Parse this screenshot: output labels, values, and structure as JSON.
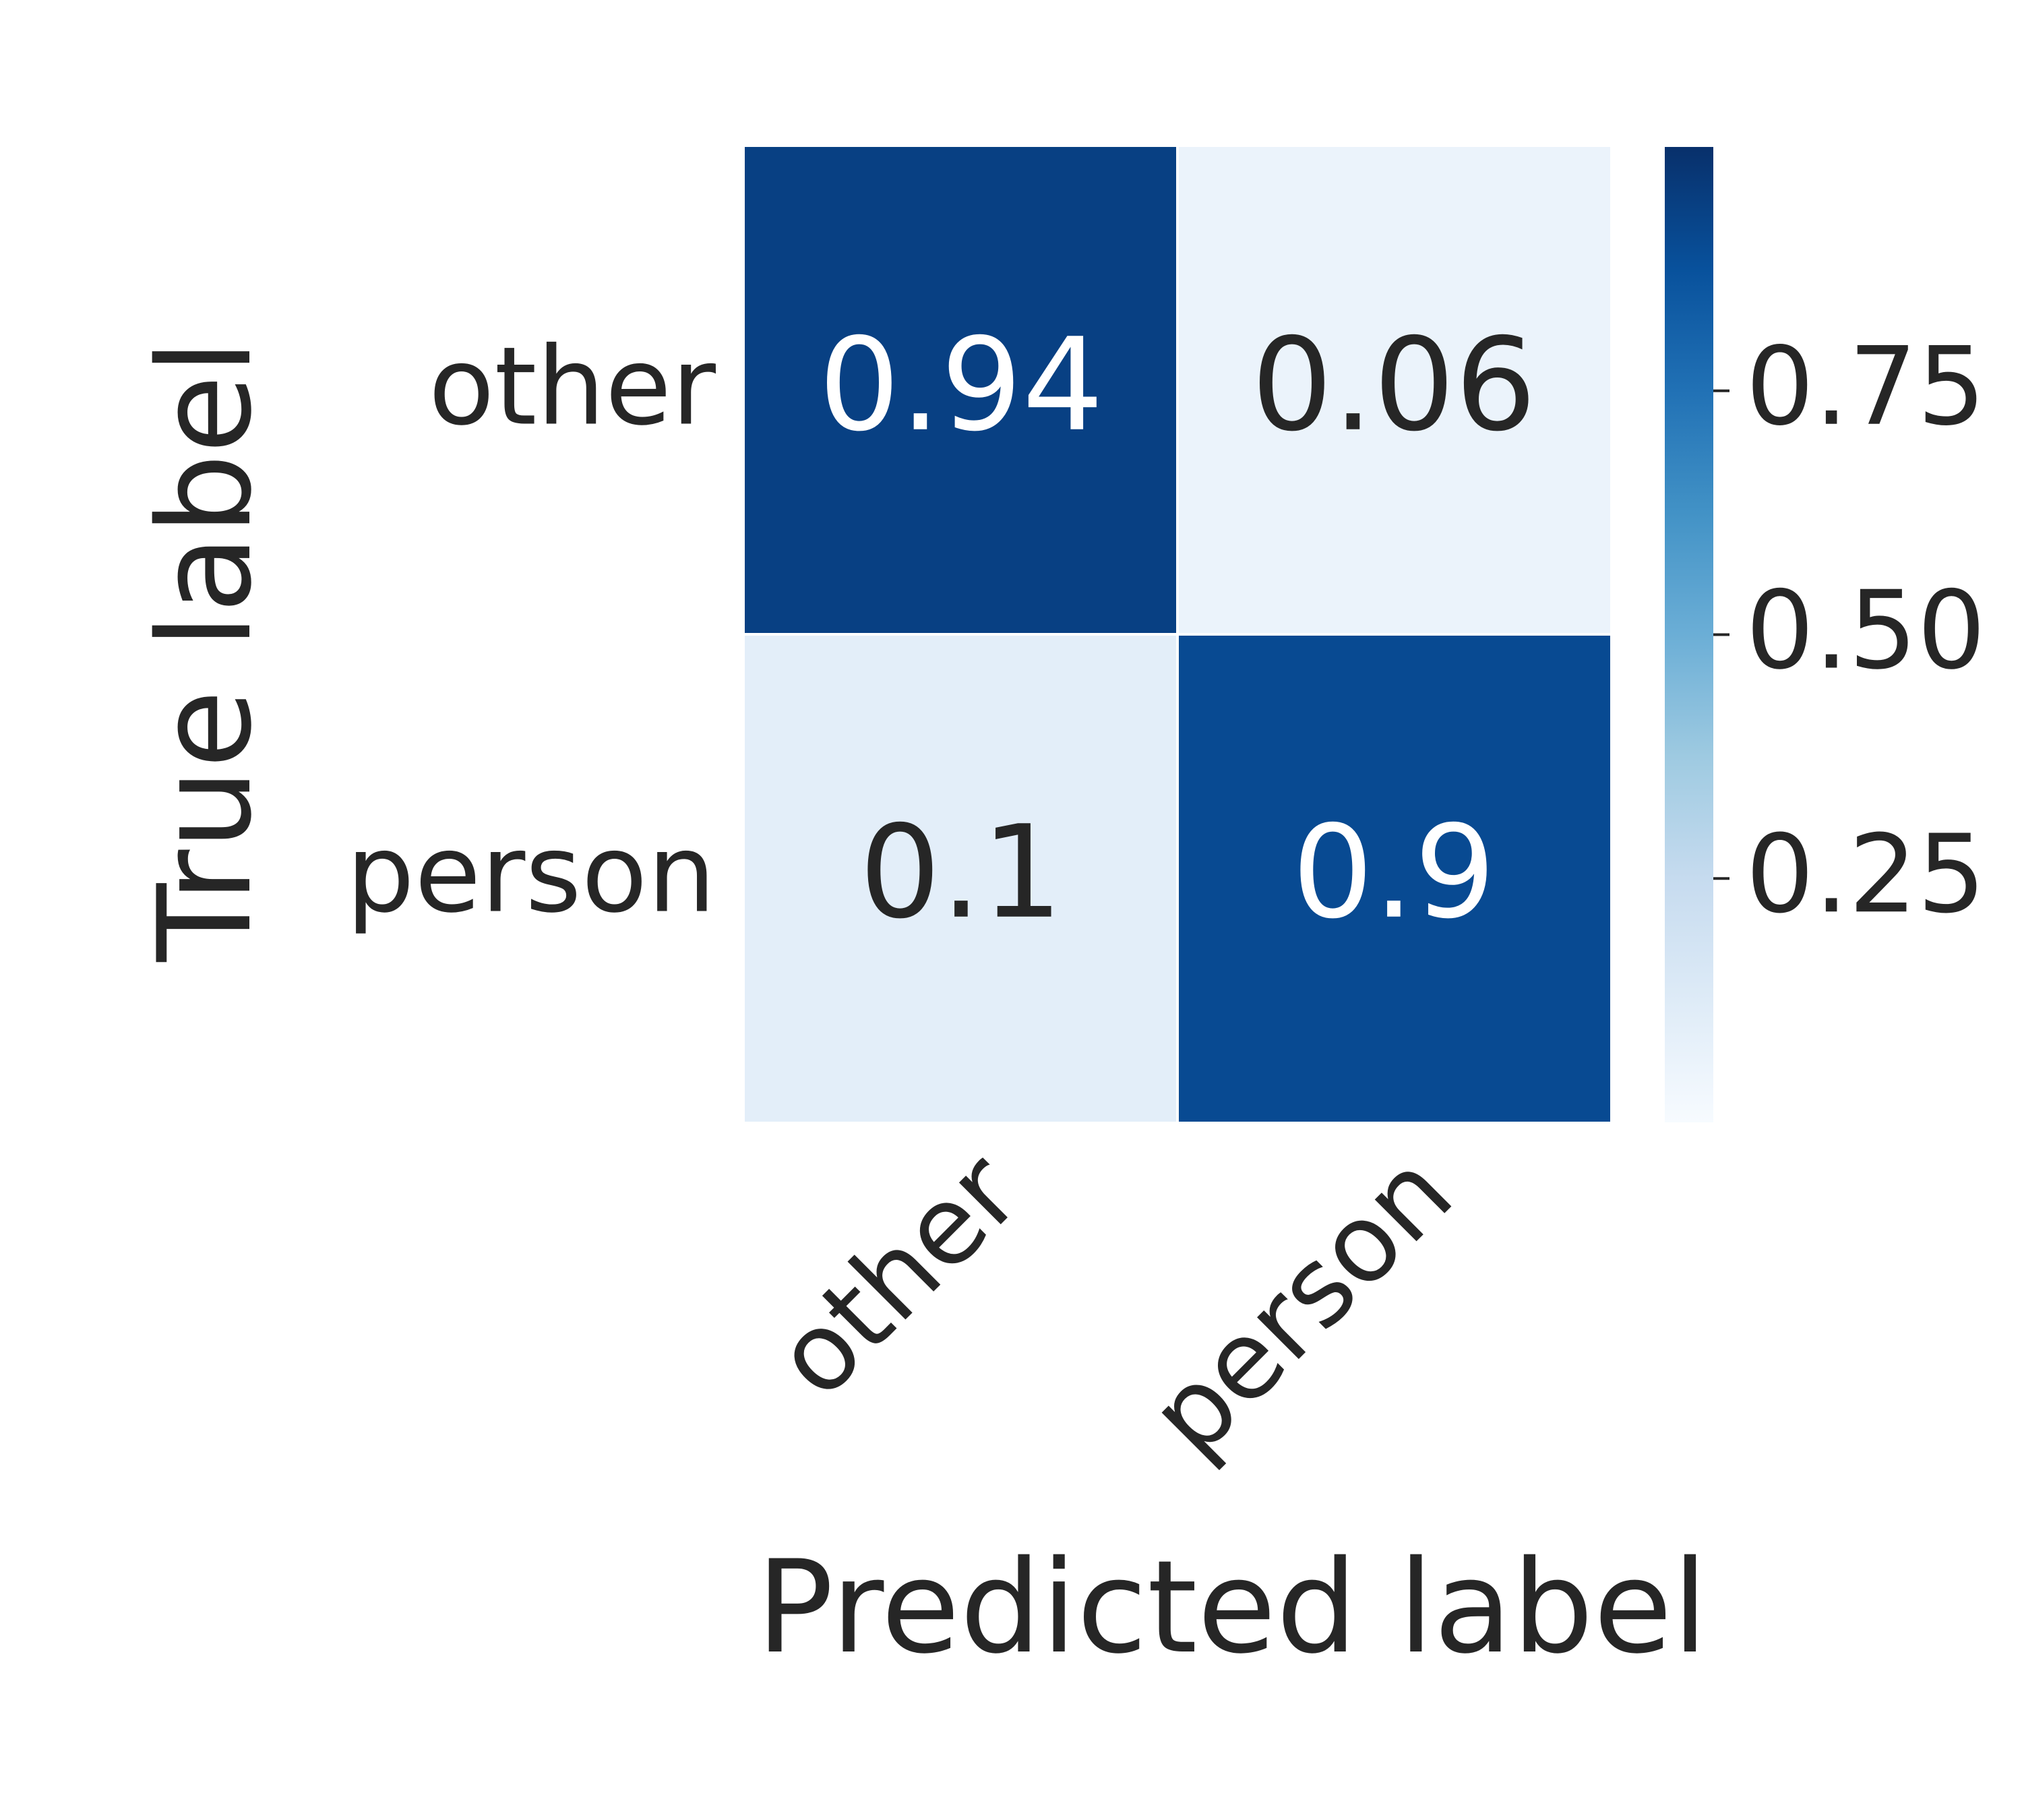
{
  "chart_data": {
    "type": "heatmap",
    "xlabel": "Predicted label",
    "ylabel": "True label",
    "x_categories": [
      "other",
      "person"
    ],
    "y_categories": [
      "other",
      "person"
    ],
    "values": [
      [
        0.94,
        0.06
      ],
      [
        0.1,
        0.9
      ]
    ],
    "value_labels": [
      [
        "0.94",
        "0.06"
      ],
      [
        "0.1",
        "0.9"
      ]
    ],
    "colorbar": {
      "range": [
        0.0,
        1.0
      ],
      "ticks": [
        0.25,
        0.5,
        0.75
      ],
      "tick_labels": [
        "0.25",
        "0.50",
        "0.75"
      ]
    },
    "colormap": "Blues",
    "colors": {
      "text_dark": "#262626",
      "text_light": "#ffffff"
    }
  }
}
